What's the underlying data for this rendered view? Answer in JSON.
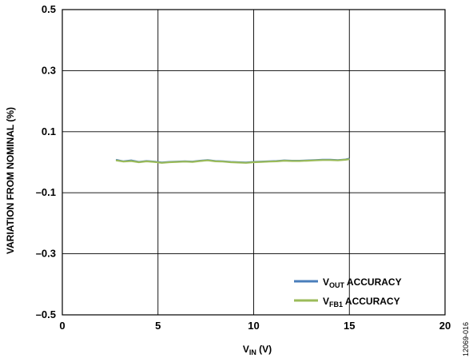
{
  "chart_data": {
    "type": "line",
    "ylabel": "VARIATION FROM NOMINAL (%)",
    "xlabel_main": "V",
    "xlabel_sub": "IN",
    "xlabel_rest": " (V)",
    "xlim": [
      0,
      20
    ],
    "ylim": [
      -0.5,
      0.5
    ],
    "x_ticks": [
      0,
      5,
      10,
      15,
      20
    ],
    "y_ticks": [
      -0.5,
      -0.3,
      -0.1,
      0.1,
      0.3,
      0.5
    ],
    "x_tick_labels": [
      "0",
      "5",
      "10",
      "15",
      "20"
    ],
    "y_tick_labels": [
      "–0.5",
      "–0.3",
      "–0.1",
      "0.1",
      "0.3",
      "0.5"
    ],
    "grid": true,
    "legend_position": "bottom-right",
    "series": [
      {
        "name_main": "V",
        "name_sub": "OUT",
        "name_rest": " ACCURACY",
        "color": "#4a7ebb",
        "x": [
          2.8,
          3.2,
          3.6,
          4.0,
          4.4,
          4.8,
          5.2,
          5.6,
          6.0,
          6.4,
          6.8,
          7.2,
          7.6,
          8.0,
          8.4,
          8.8,
          9.2,
          9.6,
          10.0,
          10.4,
          10.8,
          11.2,
          11.6,
          12.0,
          12.4,
          12.8,
          13.2,
          13.6,
          14.0,
          14.4,
          14.8,
          15.0
        ],
        "y": [
          0.008,
          0.003,
          0.006,
          0.001,
          0.004,
          0.002,
          -0.001,
          0.001,
          0.002,
          0.003,
          0.002,
          0.005,
          0.007,
          0.004,
          0.003,
          0.001,
          0.0,
          -0.001,
          0.001,
          0.002,
          0.003,
          0.004,
          0.006,
          0.005,
          0.005,
          0.006,
          0.007,
          0.008,
          0.008,
          0.007,
          0.009,
          0.012
        ]
      },
      {
        "name_main": "V",
        "name_sub": "FB1",
        "name_rest": " ACCURACY",
        "color": "#9bbb59",
        "x": [
          2.8,
          3.2,
          3.6,
          4.0,
          4.4,
          4.8,
          5.2,
          5.6,
          6.0,
          6.4,
          6.8,
          7.2,
          7.6,
          8.0,
          8.4,
          8.8,
          9.2,
          9.6,
          10.0,
          10.4,
          10.8,
          11.2,
          11.6,
          12.0,
          12.4,
          12.8,
          13.2,
          13.6,
          14.0,
          14.4,
          14.8,
          15.0
        ],
        "y": [
          0.006,
          0.002,
          0.004,
          0.0,
          0.003,
          0.001,
          -0.002,
          0.0,
          0.001,
          0.002,
          0.001,
          0.004,
          0.006,
          0.003,
          0.002,
          0.0,
          -0.001,
          -0.002,
          0.0,
          0.001,
          0.002,
          0.003,
          0.005,
          0.004,
          0.004,
          0.005,
          0.006,
          0.007,
          0.007,
          0.006,
          0.008,
          0.01
        ]
      }
    ]
  },
  "figure_id": "12069-016"
}
